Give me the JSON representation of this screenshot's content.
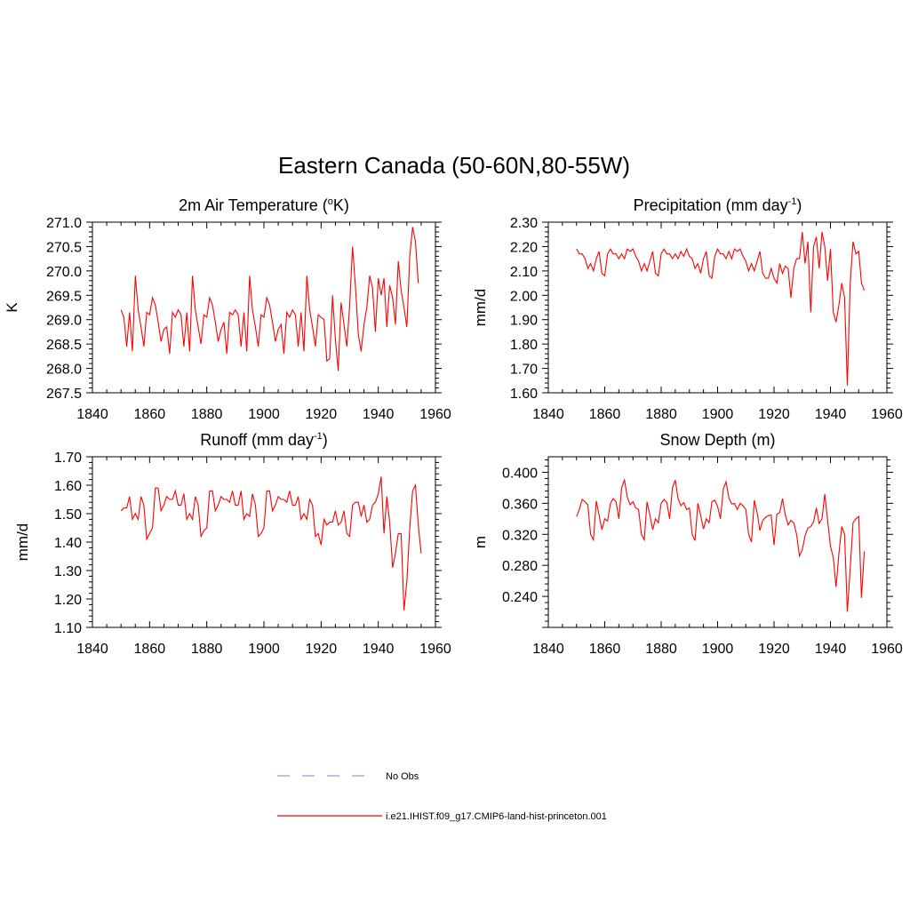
{
  "title": "Eastern Canada (50-60N,80-55W)",
  "legend": [
    {
      "label": "No Obs",
      "style": "dashed",
      "color": "#9999ee"
    },
    {
      "label": "i.e21.IHIST.f09_g17.CMIP6-land-hist-princeton.001",
      "style": "solid",
      "color": "#ff0000"
    }
  ],
  "chart_data": [
    {
      "type": "line",
      "title": "2m Air Temperature (",
      "title_sup": "o",
      "title_tail": "K)",
      "ylabel": "K",
      "xlim": [
        1840,
        1960
      ],
      "xticks": [
        1840,
        1860,
        1880,
        1900,
        1920,
        1940,
        1960
      ],
      "xtick_labels": [
        "1840",
        "1860",
        "1880",
        "1900",
        "1920",
        "1940",
        "1960"
      ],
      "ylim": [
        267.5,
        271.0
      ],
      "yticks": [
        267.5,
        268.0,
        268.5,
        269.0,
        269.5,
        270.0,
        270.5,
        271.0
      ],
      "ytick_labels": [
        "267.5",
        "268.0",
        "268.5",
        "269.0",
        "269.5",
        "270.0",
        "270.5",
        "271.0"
      ],
      "x_start": 1850,
      "series": [
        {
          "color": "#ff0000",
          "values": [
            269.2,
            269.05,
            268.45,
            269.15,
            268.35,
            269.9,
            269.2,
            268.85,
            268.45,
            269.15,
            269.1,
            269.45,
            269.3,
            268.95,
            268.55,
            268.8,
            268.85,
            268.3,
            269.15,
            269.05,
            269.2,
            269.1,
            268.45,
            269.15,
            268.35,
            269.9,
            269.2,
            268.85,
            268.5,
            269.1,
            269.05,
            269.45,
            269.3,
            268.95,
            268.55,
            268.8,
            268.95,
            268.3,
            269.15,
            269.1,
            269.2,
            269.1,
            268.45,
            269.15,
            268.35,
            269.9,
            269.2,
            268.85,
            268.45,
            269.1,
            269.05,
            269.45,
            269.3,
            268.95,
            268.55,
            268.8,
            268.9,
            268.3,
            269.15,
            269.05,
            269.2,
            269.1,
            268.45,
            269.15,
            268.35,
            269.9,
            269.2,
            268.85,
            268.45,
            269.1,
            269.05,
            269.0,
            268.15,
            268.2,
            269.5,
            268.6,
            267.95,
            269.35,
            268.9,
            268.45,
            269.3,
            270.5,
            269.7,
            268.7,
            268.35,
            268.9,
            269.25,
            269.9,
            269.65,
            268.75,
            269.85,
            269.5,
            269.85,
            268.85,
            269.7,
            269.45,
            268.9,
            270.2,
            269.6,
            269.25,
            268.85,
            270.3,
            270.9,
            270.6,
            269.75
          ]
        }
      ]
    },
    {
      "type": "line",
      "title": "Precipitation (mm day",
      "title_sup": "-1",
      "title_tail": ")",
      "ylabel": "mm/d",
      "xlim": [
        1840,
        1960
      ],
      "xticks": [
        1840,
        1860,
        1880,
        1900,
        1920,
        1940,
        1960
      ],
      "xtick_labels": [
        "1840",
        "1860",
        "1880",
        "1900",
        "1920",
        "1940",
        "1960"
      ],
      "ylim": [
        1.6,
        2.3
      ],
      "yticks": [
        1.6,
        1.7,
        1.8,
        1.9,
        2.0,
        2.1,
        2.2,
        2.3
      ],
      "ytick_labels": [
        "1.60",
        "1.70",
        "1.80",
        "1.90",
        "2.00",
        "2.10",
        "2.20",
        "2.30"
      ],
      "x_start": 1850,
      "series": [
        {
          "color": "#ff0000",
          "values": [
            2.19,
            2.17,
            2.17,
            2.15,
            2.11,
            2.13,
            2.1,
            2.15,
            2.18,
            2.09,
            2.08,
            2.17,
            2.19,
            2.17,
            2.17,
            2.15,
            2.17,
            2.15,
            2.19,
            2.18,
            2.19,
            2.16,
            2.14,
            2.1,
            2.13,
            2.1,
            2.14,
            2.18,
            2.09,
            2.08,
            2.17,
            2.19,
            2.17,
            2.17,
            2.15,
            2.17,
            2.15,
            2.18,
            2.16,
            2.19,
            2.16,
            2.15,
            2.11,
            2.13,
            2.09,
            2.15,
            2.18,
            2.08,
            2.07,
            2.16,
            2.19,
            2.17,
            2.17,
            2.15,
            2.18,
            2.15,
            2.19,
            2.18,
            2.19,
            2.16,
            2.14,
            2.1,
            2.13,
            2.1,
            2.14,
            2.18,
            2.09,
            2.07,
            2.07,
            2.11,
            2.07,
            2.05,
            2.13,
            2.09,
            2.12,
            2.11,
            1.99,
            2.11,
            2.15,
            2.15,
            2.26,
            2.13,
            2.22,
            1.93,
            2.2,
            2.24,
            2.11,
            2.26,
            2.2,
            2.06,
            2.19,
            1.93,
            1.89,
            1.96,
            2.05,
            1.99,
            1.63,
            2.05,
            2.22,
            2.17,
            2.18,
            2.05,
            2.02
          ]
        }
      ]
    },
    {
      "type": "line",
      "title": "Runoff (mm day",
      "title_sup": "-1",
      "title_tail": ")",
      "ylabel": "mm/d",
      "xlim": [
        1840,
        1960
      ],
      "xticks": [
        1840,
        1860,
        1880,
        1900,
        1920,
        1940,
        1960
      ],
      "xtick_labels": [
        "1840",
        "1860",
        "1880",
        "1900",
        "1920",
        "1940",
        "1960"
      ],
      "ylim": [
        1.1,
        1.7
      ],
      "yticks": [
        1.1,
        1.2,
        1.3,
        1.4,
        1.5,
        1.6,
        1.7
      ],
      "ytick_labels": [
        "1.10",
        "1.20",
        "1.30",
        "1.40",
        "1.50",
        "1.60",
        "1.70"
      ],
      "x_start": 1850,
      "series": [
        {
          "color": "#ff0000",
          "values": [
            1.51,
            1.52,
            1.52,
            1.56,
            1.48,
            1.5,
            1.48,
            1.56,
            1.53,
            1.41,
            1.43,
            1.45,
            1.59,
            1.59,
            1.51,
            1.53,
            1.56,
            1.55,
            1.55,
            1.58,
            1.53,
            1.53,
            1.57,
            1.48,
            1.5,
            1.48,
            1.56,
            1.53,
            1.42,
            1.44,
            1.45,
            1.58,
            1.58,
            1.51,
            1.53,
            1.56,
            1.55,
            1.55,
            1.54,
            1.58,
            1.53,
            1.53,
            1.58,
            1.48,
            1.5,
            1.49,
            1.57,
            1.53,
            1.42,
            1.43,
            1.45,
            1.58,
            1.58,
            1.51,
            1.53,
            1.56,
            1.55,
            1.55,
            1.54,
            1.58,
            1.53,
            1.53,
            1.56,
            1.48,
            1.5,
            1.48,
            1.55,
            1.53,
            1.42,
            1.43,
            1.39,
            1.48,
            1.46,
            1.47,
            1.47,
            1.51,
            1.46,
            1.47,
            1.51,
            1.43,
            1.42,
            1.53,
            1.54,
            1.54,
            1.49,
            1.53,
            1.47,
            1.48,
            1.53,
            1.54,
            1.57,
            1.63,
            1.43,
            1.56,
            1.47,
            1.31,
            1.36,
            1.43,
            1.43,
            1.16,
            1.26,
            1.45,
            1.58,
            1.6,
            1.46,
            1.36
          ]
        }
      ]
    },
    {
      "type": "line",
      "title": "Snow Depth (m)",
      "title_sup": "",
      "title_tail": "",
      "ylabel": "m",
      "xlim": [
        1840,
        1960
      ],
      "xticks": [
        1840,
        1860,
        1880,
        1900,
        1920,
        1940,
        1960
      ],
      "xtick_labels": [
        "1840",
        "1860",
        "1880",
        "1900",
        "1920",
        "1940",
        "1960"
      ],
      "ylim": [
        0.2,
        0.42
      ],
      "yticks": [
        0.24,
        0.28,
        0.32,
        0.36,
        0.4
      ],
      "ytick_labels": [
        "0.240",
        "0.280",
        "0.320",
        "0.360",
        "0.400"
      ],
      "x_start": 1850,
      "series": [
        {
          "color": "#ff0000",
          "values": [
            0.343,
            0.352,
            0.365,
            0.362,
            0.358,
            0.32,
            0.313,
            0.363,
            0.345,
            0.326,
            0.34,
            0.337,
            0.36,
            0.366,
            0.362,
            0.34,
            0.38,
            0.39,
            0.368,
            0.358,
            0.362,
            0.354,
            0.352,
            0.32,
            0.313,
            0.362,
            0.345,
            0.326,
            0.34,
            0.335,
            0.36,
            0.365,
            0.361,
            0.34,
            0.38,
            0.39,
            0.366,
            0.357,
            0.361,
            0.352,
            0.354,
            0.32,
            0.312,
            0.36,
            0.344,
            0.327,
            0.34,
            0.335,
            0.362,
            0.364,
            0.356,
            0.34,
            0.378,
            0.388,
            0.367,
            0.359,
            0.36,
            0.352,
            0.36,
            0.357,
            0.352,
            0.32,
            0.31,
            0.364,
            0.348,
            0.325,
            0.338,
            0.342,
            0.344,
            0.345,
            0.306,
            0.346,
            0.348,
            0.366,
            0.345,
            0.332,
            0.338,
            0.335,
            0.32,
            0.292,
            0.3,
            0.318,
            0.328,
            0.33,
            0.336,
            0.354,
            0.334,
            0.34,
            0.372,
            0.338,
            0.305,
            0.29,
            0.252,
            0.295,
            0.33,
            0.32,
            0.22,
            0.275,
            0.335,
            0.34,
            0.343,
            0.238,
            0.298
          ]
        }
      ]
    }
  ]
}
